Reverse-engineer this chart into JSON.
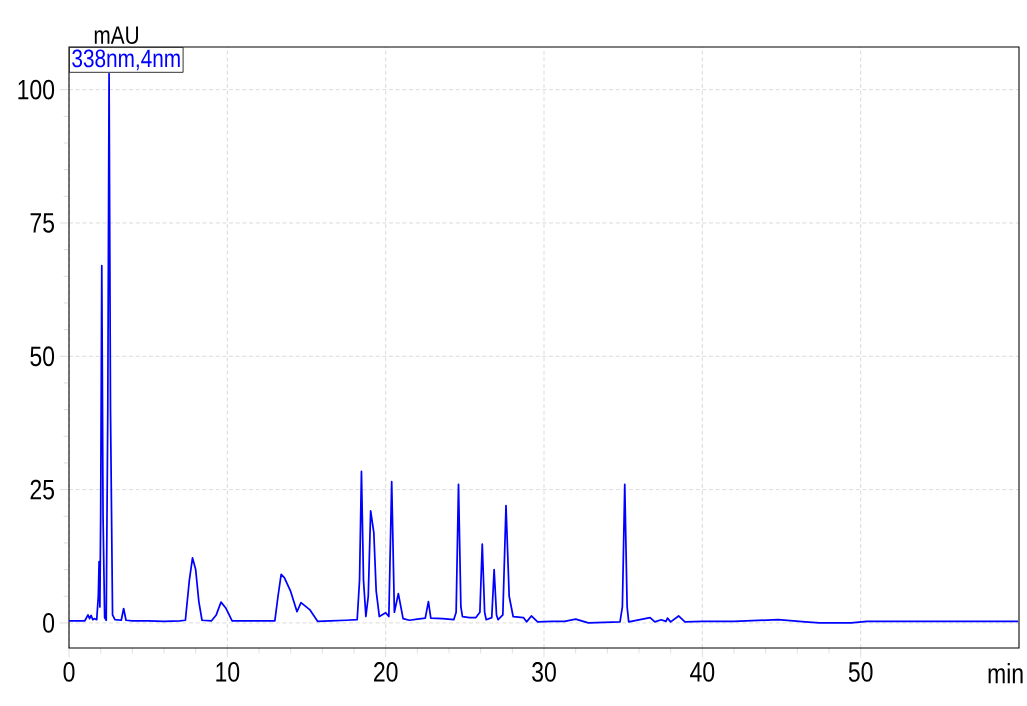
{
  "chart_data": {
    "type": "line",
    "xlabel": "min",
    "ylabel": "mAU",
    "xlim": [
      0,
      60
    ],
    "ylim": [
      -4.7,
      108
    ],
    "xticks": [
      0,
      10,
      20,
      30,
      40,
      50
    ],
    "yticks": [
      0,
      25,
      50,
      75,
      100
    ],
    "grid": true,
    "line_style": "solid",
    "marker": "none",
    "series": [
      {
        "name": "338nm,4nm",
        "color": "#0000ff",
        "x": [
          0,
          0.5,
          1.0,
          1.2,
          1.3,
          1.4,
          1.5,
          1.6,
          1.75,
          1.85,
          1.9,
          1.95,
          2.0,
          2.07,
          2.15,
          2.25,
          2.35,
          2.45,
          2.53,
          2.62,
          2.75,
          2.9,
          3.3,
          3.45,
          3.6,
          4,
          5,
          6,
          7,
          7.35,
          7.6,
          7.8,
          8.0,
          8.2,
          8.4,
          9.0,
          9.3,
          9.6,
          9.9,
          10.3,
          11,
          12,
          13.0,
          13.2,
          13.4,
          13.6,
          14.0,
          14.4,
          14.65,
          15.2,
          15.7,
          16.5,
          17.5,
          18.2,
          18.35,
          18.47,
          18.6,
          18.75,
          18.9,
          19.05,
          19.25,
          19.4,
          19.6,
          20.0,
          20.2,
          20.38,
          20.55,
          20.8,
          21.1,
          21.5,
          22.0,
          22.5,
          22.7,
          22.85,
          23.6,
          24.3,
          24.45,
          24.6,
          24.75,
          24.85,
          25.3,
          25.7,
          25.95,
          26.1,
          26.25,
          26.35,
          26.7,
          26.85,
          27.0,
          27.1,
          27.4,
          27.6,
          27.8,
          28.05,
          28.7,
          28.9,
          29.2,
          29.6,
          30.5,
          31.3,
          32.0,
          32.8,
          34.8,
          34.95,
          35.1,
          35.25,
          35.35,
          36.7,
          37.0,
          37.4,
          37.7,
          37.8,
          38.0,
          38.5,
          38.9,
          40,
          42,
          44.8,
          46.5,
          47.4,
          49.4,
          50.4,
          55,
          59.9
        ],
        "values": [
          0.4,
          0.4,
          0.4,
          1.5,
          0.8,
          1.4,
          0.6,
          0.8,
          0.6,
          5,
          11.5,
          3,
          20,
          67,
          20,
          1,
          0.5,
          40,
          103,
          40,
          1.5,
          0.6,
          0.5,
          2.7,
          0.5,
          0.4,
          0.4,
          0.3,
          0.4,
          0.5,
          8,
          12.2,
          10,
          4,
          0.5,
          0.4,
          1.5,
          3.9,
          2.8,
          0.4,
          0.4,
          0.4,
          0.4,
          5,
          9.1,
          8.5,
          5.9,
          2.1,
          3.8,
          2.5,
          0.3,
          0.4,
          0.5,
          0.6,
          8,
          28.4,
          8,
          1.2,
          5,
          21,
          17,
          6,
          1.2,
          1.9,
          1.2,
          26.5,
          2,
          5.5,
          0.8,
          0.5,
          0.7,
          0.9,
          4,
          0.9,
          0.8,
          0.6,
          2,
          26,
          3,
          1.2,
          1.0,
          1.0,
          2,
          14.8,
          2,
          0.6,
          1,
          10,
          1.5,
          0.6,
          1.5,
          22,
          5,
          1.2,
          1.0,
          0.2,
          1.3,
          0.2,
          0.3,
          0.3,
          0.7,
          0.0,
          0.2,
          3,
          26,
          3,
          0.2,
          1.0,
          0.2,
          0.6,
          0.3,
          0.9,
          0.2,
          1.3,
          0.2,
          0.3,
          0.3,
          0.6,
          0.2,
          0,
          0,
          0.3,
          0.3,
          0.3
        ]
      }
    ]
  }
}
